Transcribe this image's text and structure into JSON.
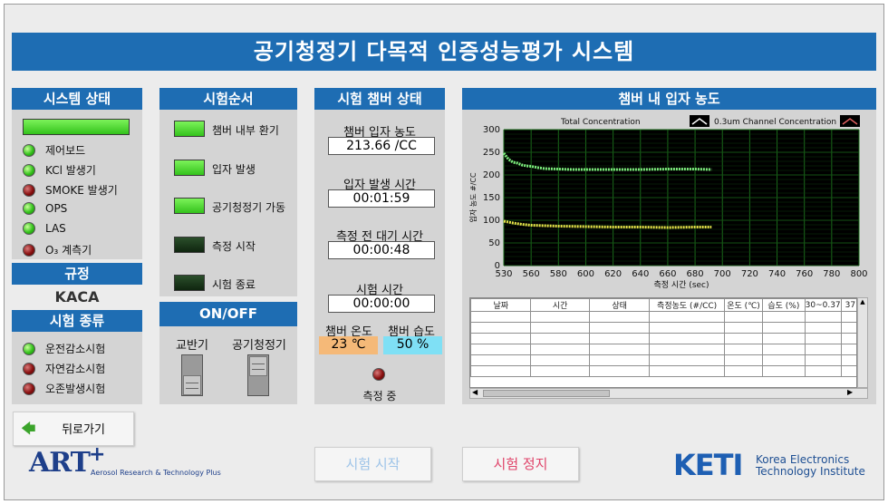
{
  "app_title": "공기청정기 다목적 인증성능평가 시스템",
  "status_panel": {
    "title": "시스템 상태",
    "items": [
      {
        "label": "제어보드",
        "state": "green"
      },
      {
        "label": "KCl 발생기",
        "state": "green"
      },
      {
        "label": "SMOKE 발생기",
        "state": "red"
      },
      {
        "label": "OPS",
        "state": "green"
      },
      {
        "label": "LAS",
        "state": "green"
      },
      {
        "label": "O₃ 계측기",
        "state": "red"
      }
    ]
  },
  "regulation": {
    "title": "규정",
    "value": "KACA"
  },
  "test_type": {
    "title": "시험 종류",
    "items": [
      {
        "label": "운전감소시험",
        "state": "green"
      },
      {
        "label": "자연감소시험",
        "state": "red"
      },
      {
        "label": "오존발생시험",
        "state": "red"
      }
    ]
  },
  "sequence": {
    "title": "시험순서",
    "steps": [
      {
        "label": "챔버 내부 환기",
        "on": true
      },
      {
        "label": "입자 발생",
        "on": true
      },
      {
        "label": "공기청정기 가동",
        "on": true
      },
      {
        "label": "측정 시작",
        "on": false
      },
      {
        "label": "시험 종료",
        "on": false
      }
    ]
  },
  "onoff": {
    "title": "ON/OFF",
    "stirrer_label": "교반기",
    "purifier_label": "공기청정기"
  },
  "chamber": {
    "title": "시험 챔버 상태",
    "conc_label": "챔버 입자 농도",
    "conc_value": "213.66 /CC",
    "gen_time_label": "입자 발생 시간",
    "gen_time_value": "00:01:59",
    "wait_label": "측정 전 대기 시간",
    "wait_value": "00:00:48",
    "test_time_label": "시험 시간",
    "test_time_value": "00:00:00",
    "temp_label": "챔버 온도",
    "temp_value": "23 ℃",
    "humid_label": "챔버 습도",
    "humid_value": "50 %",
    "measuring_label": "측정 중"
  },
  "conc_panel": {
    "title": "챔버 내 입자 농도",
    "columns": [
      "날짜",
      "시간",
      "상태",
      "측정농도 (#/CC)",
      "온도 (℃)",
      "습도 (%)",
      "30~0.37",
      "37"
    ]
  },
  "chart_data": {
    "type": "line",
    "legend": [
      "Total Concentration",
      "0.3um Channel Concentration"
    ],
    "xlabel": "측정 시간 (sec)",
    "ylabel": "입자 농도 #/CC",
    "xlim": [
      530,
      800
    ],
    "ylim": [
      0,
      300
    ],
    "xticks": [
      530,
      560,
      580,
      600,
      620,
      640,
      660,
      680,
      700,
      720,
      740,
      760,
      780,
      800
    ],
    "yticks": [
      0,
      50,
      100,
      150,
      200,
      250,
      300
    ],
    "series": [
      {
        "name": "Total Concentration",
        "color": "#7ef07e",
        "x": [
          530,
          535,
          540,
          545,
          550,
          555,
          560,
          565,
          570,
          580,
          590,
          600,
          620,
          640,
          660,
          680,
          692
        ],
        "values": [
          248,
          235,
          228,
          226,
          222,
          220,
          219,
          216,
          214,
          213,
          212,
          212,
          212,
          212,
          213,
          213,
          212
        ]
      },
      {
        "name": "0.3um Channel Concentration",
        "color": "#e8e84a",
        "x": [
          530,
          540,
          550,
          560,
          570,
          580,
          600,
          620,
          640,
          660,
          680,
          692
        ],
        "values": [
          98,
          94,
          91,
          89,
          88,
          87,
          86,
          85,
          85,
          84,
          85,
          85
        ]
      }
    ],
    "grid": true,
    "legend_position": "top"
  },
  "footer": {
    "back_label": "뒤로가기",
    "start_label": "시험 시작",
    "stop_label": "시험 정지",
    "art_logo": "ART",
    "art_sup": "+",
    "art_sub": "Aerosol Research & Technology Plus",
    "keti_logo": "KETI",
    "keti_line1": "Korea Electronics",
    "keti_line2": "Technology Institute"
  },
  "colors": {
    "header_blue": "#1e6db3",
    "led_green": "#34c21c",
    "led_red": "#8a1010",
    "temp_bg": "#f5b978",
    "humid_bg": "#7fe0f5"
  }
}
